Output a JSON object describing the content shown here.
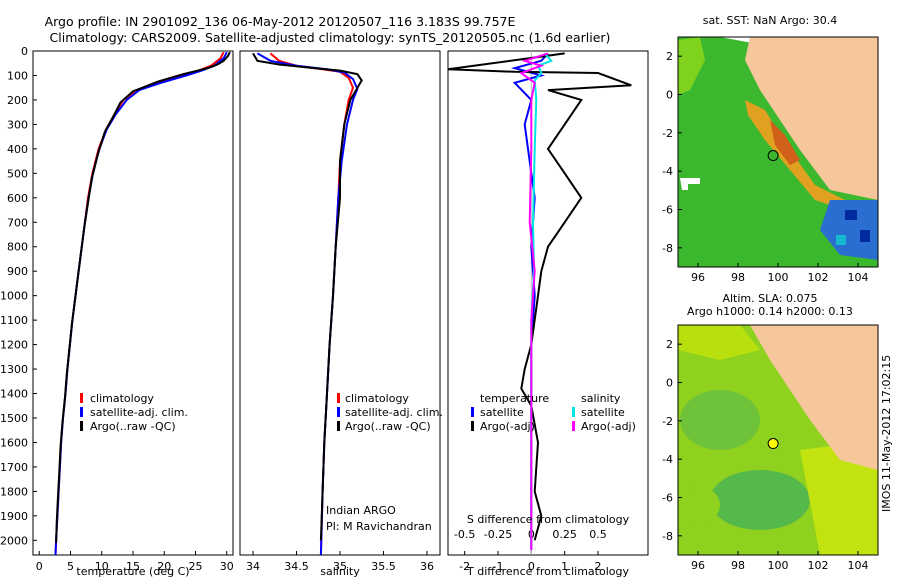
{
  "header": {
    "line1": "Argo profile: IN 2901092_136 06-May-2012 20120507_116 3.183S 99.757E",
    "line2": "Climatology: CARS2009. Satellite-adjusted climatology: synTS_20120505.nc (1.6d earlier)"
  },
  "colors": {
    "climatology": "#ff0000",
    "satellite": "#0000ff",
    "argo": "#000000",
    "salinity_sat": "#00e5e5",
    "salinity_argo": "#ff00ff",
    "land": "#f6c79b"
  },
  "depth_ticks": [
    0,
    100,
    200,
    300,
    400,
    500,
    600,
    700,
    800,
    900,
    1000,
    1100,
    1200,
    1300,
    1400,
    1500,
    1600,
    1700,
    1800,
    1900,
    2000
  ],
  "chart_data": [
    {
      "type": "line",
      "xlabel": "temperature (deg C)",
      "xlim": [
        -1,
        31
      ],
      "ylim": [
        0,
        2060
      ],
      "xticks": [
        "0",
        "5",
        "10",
        "15",
        "20",
        "25",
        "30"
      ],
      "legend": [
        "climatology",
        "satellite-adj. clim.",
        "Argo(..raw -QC)"
      ],
      "series": [
        {
          "name": "climatology",
          "values": [
            [
              29.5,
              5
            ],
            [
              29,
              30
            ],
            [
              27.5,
              60
            ],
            [
              25.5,
              80
            ],
            [
              23,
              100
            ],
            [
              19,
              130
            ],
            [
              15.5,
              160
            ],
            [
              13.5,
              200
            ],
            [
              12,
              260
            ],
            [
              10.7,
              320
            ],
            [
              9.5,
              400
            ],
            [
              8.5,
              500
            ],
            [
              7.8,
              600
            ],
            [
              7.3,
              700
            ],
            [
              6.8,
              800
            ],
            [
              6.3,
              900
            ],
            [
              5.8,
              1000
            ],
            [
              5.3,
              1100
            ],
            [
              4.9,
              1200
            ],
            [
              4.5,
              1300
            ],
            [
              4.2,
              1400
            ],
            [
              3.8,
              1500
            ],
            [
              3.5,
              1600
            ],
            [
              3.3,
              1700
            ],
            [
              3.1,
              1800
            ],
            [
              2.9,
              1900
            ],
            [
              2.7,
              2000
            ],
            [
              2.6,
              2060
            ]
          ]
        },
        {
          "name": "satellite-adj. clim.",
          "values": [
            [
              30,
              5
            ],
            [
              29.5,
              30
            ],
            [
              28,
              60
            ],
            [
              26,
              80
            ],
            [
              23.5,
              100
            ],
            [
              19.5,
              130
            ],
            [
              16,
              160
            ],
            [
              14,
              200
            ],
            [
              12.2,
              260
            ],
            [
              10.8,
              320
            ],
            [
              9.6,
              400
            ],
            [
              8.6,
              500
            ],
            [
              7.9,
              600
            ],
            [
              7.3,
              700
            ],
            [
              6.8,
              800
            ],
            [
              6.3,
              900
            ],
            [
              5.8,
              1000
            ],
            [
              5.3,
              1100
            ],
            [
              4.9,
              1200
            ],
            [
              4.5,
              1300
            ],
            [
              4.2,
              1400
            ],
            [
              3.8,
              1500
            ],
            [
              3.5,
              1600
            ],
            [
              3.3,
              1700
            ],
            [
              3.1,
              1800
            ],
            [
              2.9,
              1900
            ],
            [
              2.7,
              2000
            ],
            [
              2.6,
              2060
            ]
          ]
        },
        {
          "name": "Argo(..raw -QC)",
          "values": [
            [
              30.5,
              5
            ],
            [
              30.2,
              20
            ],
            [
              29.5,
              40
            ],
            [
              28.5,
              55
            ],
            [
              27,
              70
            ],
            [
              23,
              95
            ],
            [
              19,
              125
            ],
            [
              15,
              165
            ],
            [
              13,
              210
            ],
            [
              12,
              260
            ],
            [
              10.5,
              330
            ],
            [
              9.4,
              420
            ],
            [
              8.4,
              520
            ],
            [
              7.8,
              620
            ],
            [
              7.2,
              720
            ],
            [
              6.7,
              820
            ],
            [
              6.2,
              920
            ],
            [
              5.7,
              1020
            ],
            [
              5.2,
              1120
            ],
            [
              4.8,
              1220
            ],
            [
              4.4,
              1320
            ],
            [
              4.1,
              1420
            ],
            [
              3.7,
              1520
            ],
            [
              3.4,
              1620
            ],
            [
              3.2,
              1720
            ],
            [
              3.0,
              1820
            ],
            [
              2.8,
              1920
            ],
            [
              2.7,
              2010
            ]
          ]
        }
      ]
    },
    {
      "type": "line",
      "xlabel": "salinity",
      "xlim": [
        33.85,
        36.15
      ],
      "ylim": [
        0,
        2060
      ],
      "xticks": [
        "34",
        "34.5",
        "35",
        "35.5",
        "36"
      ],
      "legend": [
        "climatology",
        "satellite-adj. clim.",
        "Argo(..raw -QC)"
      ],
      "annotation": [
        "Indian ARGO",
        "PI: M Ravichandran"
      ],
      "series": [
        {
          "name": "climatology",
          "values": [
            [
              34.2,
              10
            ],
            [
              34.3,
              40
            ],
            [
              34.5,
              60
            ],
            [
              34.8,
              75
            ],
            [
              35.0,
              85
            ],
            [
              35.1,
              110
            ],
            [
              35.15,
              150
            ],
            [
              35.1,
              200
            ],
            [
              35.05,
              300
            ],
            [
              35.0,
              450
            ],
            [
              34.98,
              600
            ],
            [
              34.95,
              800
            ],
            [
              34.92,
              1000
            ],
            [
              34.88,
              1200
            ],
            [
              34.85,
              1400
            ],
            [
              34.82,
              1600
            ],
            [
              34.8,
              1800
            ],
            [
              34.78,
              2060
            ]
          ]
        },
        {
          "name": "satellite-adj. clim.",
          "values": [
            [
              34.05,
              10
            ],
            [
              34.2,
              40
            ],
            [
              34.5,
              60
            ],
            [
              34.85,
              75
            ],
            [
              35.05,
              88
            ],
            [
              35.15,
              115
            ],
            [
              35.2,
              155
            ],
            [
              35.15,
              200
            ],
            [
              35.08,
              300
            ],
            [
              35.02,
              450
            ],
            [
              34.98,
              600
            ],
            [
              34.95,
              800
            ],
            [
              34.92,
              1000
            ],
            [
              34.88,
              1200
            ],
            [
              34.85,
              1400
            ],
            [
              34.82,
              1600
            ],
            [
              34.8,
              1800
            ],
            [
              34.78,
              2060
            ]
          ]
        },
        {
          "name": "Argo(..raw -QC)",
          "values": [
            [
              34.0,
              10
            ],
            [
              34.05,
              40
            ],
            [
              34.3,
              55
            ],
            [
              34.7,
              70
            ],
            [
              35.0,
              80
            ],
            [
              35.2,
              95
            ],
            [
              35.25,
              120
            ],
            [
              35.2,
              150
            ],
            [
              35.12,
              200
            ],
            [
              35.05,
              300
            ],
            [
              35.0,
              450
            ],
            [
              35.0,
              600
            ],
            [
              34.95,
              800
            ],
            [
              34.92,
              1000
            ],
            [
              34.88,
              1200
            ],
            [
              34.85,
              1400
            ],
            [
              34.82,
              1600
            ],
            [
              34.8,
              1800
            ],
            [
              34.78,
              2000
            ]
          ]
        }
      ]
    },
    {
      "type": "line",
      "xlabel": "T difference from climatology",
      "title": "S difference from climatology",
      "xlim": [
        -2.5,
        3.5
      ],
      "ylim": [
        0,
        2060
      ],
      "xticks": [
        "-2",
        "-1",
        "0",
        "1",
        "2"
      ],
      "xticks_top": [
        "-0.5",
        "-0.25",
        "0",
        "0.25",
        "0.5"
      ],
      "legend": [
        "temperature",
        "satellite",
        "Argo(-adj)",
        "salinity",
        "satellite",
        "Argo(-adj)"
      ],
      "series": [
        {
          "name": "temperature satellite",
          "values": [
            [
              0.5,
              10
            ],
            [
              0.3,
              40
            ],
            [
              -0.5,
              70
            ],
            [
              0.3,
              100
            ],
            [
              -0.5,
              130
            ],
            [
              0,
              200
            ],
            [
              -0.2,
              300
            ],
            [
              -0.1,
              400
            ],
            [
              0.1,
              600
            ],
            [
              0,
              800
            ],
            [
              0.1,
              1000
            ],
            [
              0,
              1200
            ],
            [
              0,
              1400
            ],
            [
              0,
              1600
            ],
            [
              0,
              1800
            ],
            [
              0,
              2040
            ]
          ]
        },
        {
          "name": "temperature Argo(-adj)",
          "values": [
            [
              1,
              10
            ],
            [
              -2.5,
              75
            ],
            [
              -0.5,
              85
            ],
            [
              2,
              90
            ],
            [
              3,
              140
            ],
            [
              0.5,
              160
            ],
            [
              1.5,
              200
            ],
            [
              1,
              300
            ],
            [
              0.5,
              400
            ],
            [
              1,
              500
            ],
            [
              1.5,
              600
            ],
            [
              1,
              700
            ],
            [
              0.5,
              800
            ],
            [
              0.3,
              900
            ],
            [
              0.2,
              1000
            ],
            [
              0,
              1200
            ],
            [
              -0.2,
              1300
            ],
            [
              -0.3,
              1380
            ],
            [
              0,
              1450
            ],
            [
              0.2,
              1600
            ],
            [
              0.1,
              1800
            ],
            [
              0.3,
              1900
            ],
            [
              0.1,
              2000
            ]
          ]
        },
        {
          "name": "salinity satellite",
          "values": [
            [
              0.4,
              10
            ],
            [
              0.6,
              40
            ],
            [
              0.2,
              60
            ],
            [
              0.3,
              90
            ],
            [
              0.1,
              120
            ],
            [
              0.15,
              200
            ],
            [
              0.1,
              400
            ],
            [
              0.05,
              700
            ],
            [
              0.08,
              900
            ],
            [
              0,
              1100
            ],
            [
              0,
              1400
            ],
            [
              0,
              1700
            ],
            [
              0,
              2040
            ]
          ]
        },
        {
          "name": "salinity Argo(-adj)",
          "values": [
            [
              0.5,
              10
            ],
            [
              -0.2,
              40
            ],
            [
              0.3,
              60
            ],
            [
              -0.3,
              90
            ],
            [
              0.1,
              130
            ],
            [
              0,
              200
            ],
            [
              0,
              400
            ],
            [
              -0.05,
              700
            ],
            [
              0.1,
              900
            ],
            [
              0,
              1100
            ],
            [
              0,
              1400
            ],
            [
              0,
              1700
            ],
            [
              0,
              2040
            ]
          ]
        }
      ]
    },
    {
      "type": "heatmap",
      "title": "sat. SST: NaN Argo: 30.4",
      "xlim": [
        95,
        105
      ],
      "ylim": [
        -9,
        3
      ],
      "xticks": [
        "96",
        "98",
        "100",
        "102",
        "104"
      ],
      "yticks": [
        "2",
        "0",
        "-2",
        "-4",
        "-6",
        "-8"
      ],
      "marker": {
        "lon": 99.757,
        "lat": -3.183
      }
    },
    {
      "type": "heatmap",
      "title": "Altim. SLA: 0.075",
      "subtitle": "Argo h1000: 0.14 h2000: 0.13",
      "xlim": [
        95,
        105
      ],
      "ylim": [
        -9,
        3
      ],
      "xticks": [
        "96",
        "98",
        "100",
        "102",
        "104"
      ],
      "yticks": [
        "2",
        "0",
        "-2",
        "-4",
        "-6",
        "-8"
      ],
      "marker": {
        "lon": 99.757,
        "lat": -3.183
      }
    }
  ],
  "footer": {
    "stamp": "IMOS 11-May-2012 17:02:15"
  }
}
